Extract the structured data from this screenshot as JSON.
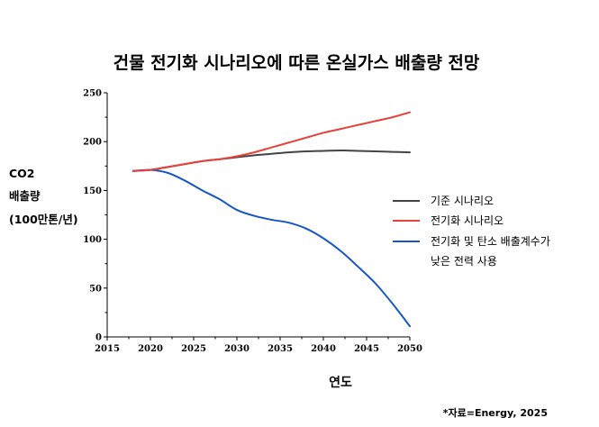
{
  "chart_data": {
    "type": "line",
    "title": "건물 전기화 시나리오에 따른 온실가스 배출량 전망",
    "ylabel_lines": [
      "CO2",
      "배출량",
      "(100만톤/년)"
    ],
    "xlabel": "연도",
    "source": "*자료=Energy, 2025",
    "xlim": [
      2015,
      2050
    ],
    "ylim": [
      0,
      250
    ],
    "xticks": [
      2015,
      2020,
      2025,
      2030,
      2035,
      2040,
      2045,
      2050
    ],
    "yticks": [
      0,
      50,
      100,
      150,
      200,
      250
    ],
    "x": [
      2018,
      2020,
      2022,
      2024,
      2026,
      2028,
      2030,
      2032,
      2034,
      2036,
      2038,
      2040,
      2042,
      2044,
      2046,
      2048,
      2050
    ],
    "series": [
      {
        "name": "기준 시나리오",
        "color": "#444444",
        "values": [
          170,
          171,
          174,
          177,
          180,
          182,
          184,
          186,
          187.5,
          189,
          190,
          190.5,
          191,
          190.5,
          190,
          189.5,
          189
        ]
      },
      {
        "name": "전기화 시나리오",
        "color": "#e8413a",
        "values": [
          170,
          171,
          174,
          177,
          180,
          182,
          185,
          189,
          194,
          199,
          204,
          209,
          213,
          217,
          221,
          225,
          230
        ]
      },
      {
        "name": "전기화 및 탄소 배출계수가 낮은 전력 사용",
        "name_lines": [
          "전기화 및 탄소 배출계수가",
          "낮은 전력 사용"
        ],
        "color": "#1656c8",
        "values": [
          170,
          171,
          168,
          160,
          150,
          141,
          130,
          124,
          120,
          117,
          111,
          101,
          88,
          72,
          55,
          34,
          11
        ]
      }
    ]
  }
}
